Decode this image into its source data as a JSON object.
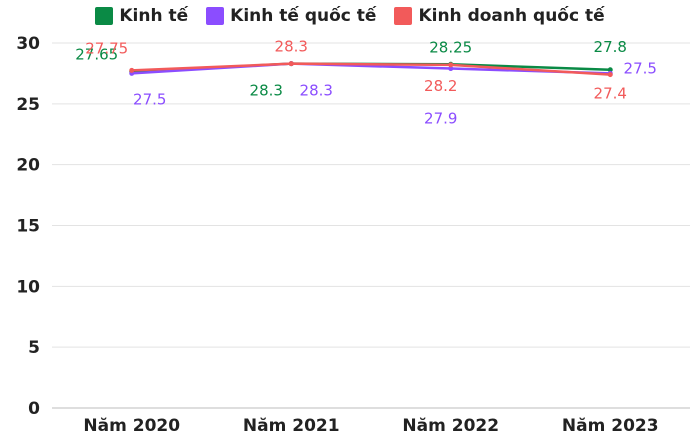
{
  "chart_data": {
    "type": "line",
    "categories": [
      "Năm 2020",
      "Năm 2021",
      "Năm 2022",
      "Năm 2023"
    ],
    "series": [
      {
        "name": "Kinh tế",
        "color": "#0a8a45",
        "values": [
          27.65,
          28.3,
          28.25,
          27.8
        ],
        "label_dx": [
          -35,
          -25,
          0,
          0
        ],
        "label_dy": [
          -12,
          32,
          -12,
          -18
        ]
      },
      {
        "name": "Kinh tế quốc tế",
        "color": "#8b4dff",
        "values": [
          27.5,
          28.3,
          27.9,
          27.5
        ],
        "label_dx": [
          18,
          25,
          -10,
          30
        ],
        "label_dy": [
          31,
          32,
          55,
          0
        ]
      },
      {
        "name": "Kinh doanh quốc tế",
        "color": "#f25a5a",
        "values": [
          27.75,
          28.3,
          28.2,
          27.4
        ],
        "label_dx": [
          -25,
          0,
          -10,
          0
        ],
        "label_dy": [
          -17,
          -12,
          26,
          24
        ]
      }
    ],
    "ylim": [
      0,
      30
    ],
    "yticks": [
      0,
      5,
      10,
      15,
      20,
      25,
      30
    ],
    "xlabel": "",
    "ylabel": "",
    "grid": "horizontal",
    "legend": "top-center"
  }
}
